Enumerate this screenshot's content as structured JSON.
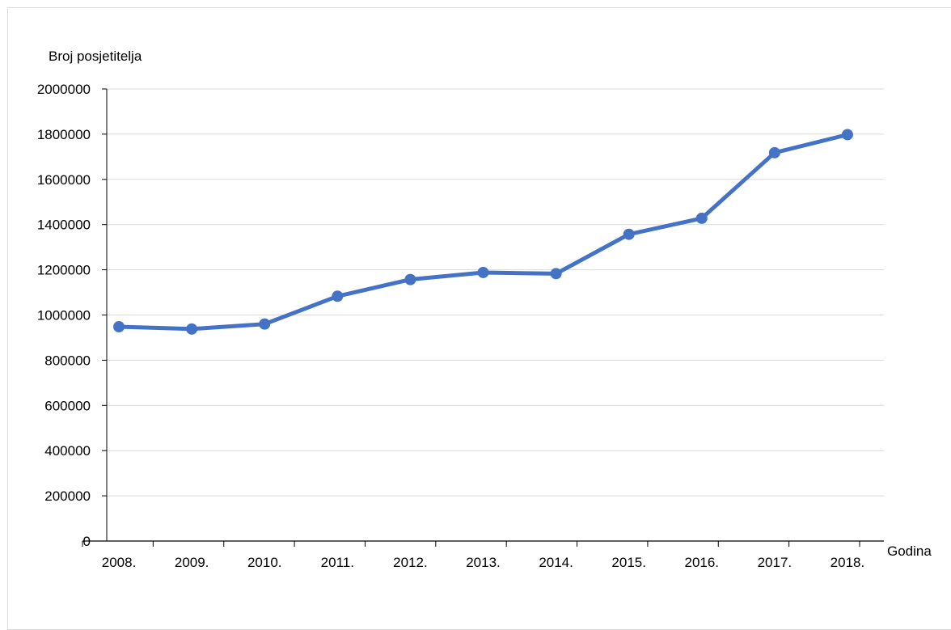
{
  "chart_data": {
    "type": "line",
    "title": "",
    "xlabel": "Godina",
    "ylabel": "Broj posjetitelja",
    "categories": [
      "2008.",
      "2009.",
      "2010.",
      "2011.",
      "2012.",
      "2013.",
      "2014.",
      "2015.",
      "2016.",
      "2017.",
      "2018."
    ],
    "series": [
      {
        "values": [
          948000,
          938000,
          960000,
          1083000,
          1157000,
          1188000,
          1183000,
          1357000,
          1428000,
          1718000,
          1798000
        ]
      }
    ],
    "ylim": [
      0,
      2000000
    ],
    "yticks": [
      "0",
      "200000",
      "400000",
      "600000",
      "800000",
      "1000000",
      "1200000",
      "1400000",
      "1600000",
      "1800000",
      "2000000"
    ],
    "grid": "horizontal",
    "legend": "none",
    "colors": {
      "line": "#4472c4",
      "grid": "#d9d9d9",
      "axis": "#000000"
    }
  }
}
